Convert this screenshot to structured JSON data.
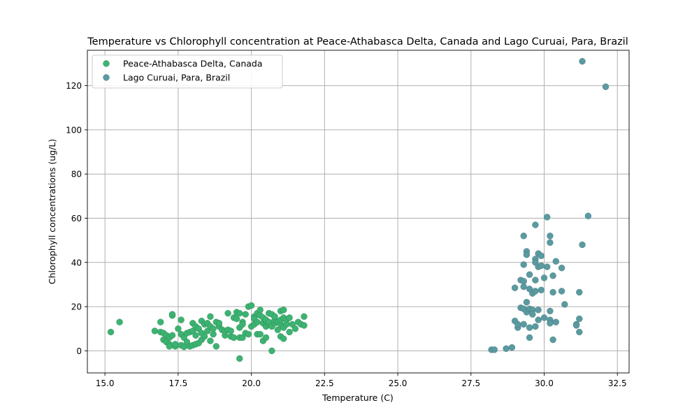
{
  "chart_data": {
    "type": "scatter",
    "title": "Temperature vs Chlorophyll concentration at Peace-Athabasca Delta, Canada and Lago Curuai, Para, Brazil",
    "xlabel": "Temperature (C)",
    "ylabel": "Chlorophyll concentrations (ug/L)",
    "xlim": [
      14.4,
      32.9
    ],
    "ylim": [
      -10,
      136
    ],
    "xticks": [
      "15.0",
      "17.5",
      "20.0",
      "22.5",
      "25.0",
      "27.5",
      "30.0",
      "32.5"
    ],
    "yticks": [
      "0",
      "20",
      "40",
      "60",
      "80",
      "100",
      "120"
    ],
    "grid": true,
    "legend_position": "top-left",
    "series": [
      {
        "name": "Peace-Athabasca Delta, Canada",
        "color": "#3cb371",
        "edge": "#2a7a4d",
        "points": [
          [
            15.2,
            8.5
          ],
          [
            15.5,
            13
          ],
          [
            16.7,
            9
          ],
          [
            16.9,
            13
          ],
          [
            16.9,
            8.5
          ],
          [
            17.0,
            5
          ],
          [
            17.0,
            8
          ],
          [
            17.1,
            7
          ],
          [
            17.1,
            4
          ],
          [
            17.2,
            6
          ],
          [
            17.2,
            3
          ],
          [
            17.2,
            2
          ],
          [
            17.3,
            7
          ],
          [
            17.3,
            16
          ],
          [
            17.3,
            16.5
          ],
          [
            17.4,
            2
          ],
          [
            17.4,
            3
          ],
          [
            17.5,
            10
          ],
          [
            17.6,
            7.5
          ],
          [
            17.6,
            2.5
          ],
          [
            17.6,
            14
          ],
          [
            17.7,
            6
          ],
          [
            17.7,
            1.8
          ],
          [
            17.8,
            8
          ],
          [
            17.8,
            4
          ],
          [
            17.9,
            2
          ],
          [
            17.9,
            8.5
          ],
          [
            18.0,
            12.5
          ],
          [
            18.0,
            9
          ],
          [
            18.0,
            2.5
          ],
          [
            18.1,
            3
          ],
          [
            18.1,
            7
          ],
          [
            18.1,
            11
          ],
          [
            18.2,
            10
          ],
          [
            18.2,
            3.5
          ],
          [
            18.3,
            13.5
          ],
          [
            18.3,
            8
          ],
          [
            18.3,
            5
          ],
          [
            18.4,
            12
          ],
          [
            18.4,
            6.5
          ],
          [
            18.5,
            9
          ],
          [
            18.5,
            12.5
          ],
          [
            18.6,
            11
          ],
          [
            18.6,
            4.5
          ],
          [
            18.6,
            15.5
          ],
          [
            18.7,
            7.5
          ],
          [
            18.7,
            10
          ],
          [
            18.8,
            2
          ],
          [
            18.8,
            13
          ],
          [
            18.9,
            11
          ],
          [
            18.9,
            12.5
          ],
          [
            19.0,
            9.5
          ],
          [
            19.1,
            7
          ],
          [
            19.1,
            9
          ],
          [
            19.2,
            17
          ],
          [
            19.2,
            9.5
          ],
          [
            19.3,
            6.5
          ],
          [
            19.3,
            9
          ],
          [
            19.4,
            6
          ],
          [
            19.4,
            15
          ],
          [
            19.5,
            14.5
          ],
          [
            19.5,
            17.5
          ],
          [
            19.6,
            10.5
          ],
          [
            19.6,
            17
          ],
          [
            19.6,
            6
          ],
          [
            19.6,
            -3.5
          ],
          [
            19.7,
            13
          ],
          [
            19.7,
            12
          ],
          [
            19.7,
            6
          ],
          [
            19.8,
            8
          ],
          [
            19.8,
            16.5
          ],
          [
            19.9,
            20
          ],
          [
            19.9,
            7.5
          ],
          [
            20.0,
            20.5
          ],
          [
            20.0,
            11
          ],
          [
            20.1,
            15.5
          ],
          [
            20.1,
            12
          ],
          [
            20.1,
            14.5
          ],
          [
            20.2,
            7.5
          ],
          [
            20.2,
            13
          ],
          [
            20.2,
            17
          ],
          [
            20.3,
            16
          ],
          [
            20.3,
            18.5
          ],
          [
            20.3,
            7.5
          ],
          [
            20.4,
            12.5
          ],
          [
            20.4,
            4.5
          ],
          [
            20.4,
            15
          ],
          [
            20.5,
            11
          ],
          [
            20.5,
            13.5
          ],
          [
            20.5,
            14
          ],
          [
            20.5,
            6
          ],
          [
            20.6,
            17
          ],
          [
            20.6,
            12
          ],
          [
            20.6,
            13
          ],
          [
            20.7,
            0
          ],
          [
            20.7,
            11
          ],
          [
            20.7,
            16.5
          ],
          [
            20.8,
            12.5
          ],
          [
            20.8,
            14
          ],
          [
            20.8,
            15.5
          ],
          [
            20.9,
            9.5
          ],
          [
            20.9,
            13
          ],
          [
            21.0,
            18
          ],
          [
            21.0,
            12
          ],
          [
            21.0,
            14
          ],
          [
            21.0,
            6.5
          ],
          [
            21.1,
            10.5
          ],
          [
            21.1,
            15
          ],
          [
            21.1,
            18.5
          ],
          [
            21.2,
            14
          ],
          [
            21.2,
            12
          ],
          [
            21.3,
            15
          ],
          [
            21.3,
            8.5
          ],
          [
            21.4,
            12
          ],
          [
            21.5,
            10
          ],
          [
            21.6,
            13
          ],
          [
            21.7,
            12
          ],
          [
            21.8,
            15.5
          ],
          [
            21.8,
            11.5
          ],
          [
            21.1,
            5.5
          ]
        ]
      },
      {
        "name": "Lago Curuai, Para, Brazil",
        "color": "#5a9aa0",
        "edge": "#3f6f74",
        "points": [
          [
            28.2,
            0.5
          ],
          [
            28.3,
            0.5
          ],
          [
            28.7,
            1
          ],
          [
            28.9,
            1.5
          ],
          [
            29.0,
            28.5
          ],
          [
            29.0,
            13.5
          ],
          [
            29.1,
            10.5
          ],
          [
            29.1,
            12
          ],
          [
            29.2,
            19.5
          ],
          [
            29.2,
            32
          ],
          [
            29.3,
            52
          ],
          [
            29.3,
            39
          ],
          [
            29.3,
            31.5
          ],
          [
            29.3,
            29
          ],
          [
            29.3,
            19
          ],
          [
            29.3,
            12
          ],
          [
            29.4,
            45
          ],
          [
            29.4,
            43.5
          ],
          [
            29.4,
            22
          ],
          [
            29.4,
            17.5
          ],
          [
            29.5,
            34.5
          ],
          [
            29.5,
            28
          ],
          [
            29.5,
            19
          ],
          [
            29.5,
            10.5
          ],
          [
            29.5,
            6
          ],
          [
            29.6,
            26
          ],
          [
            29.6,
            18.5
          ],
          [
            29.6,
            16.5
          ],
          [
            29.7,
            57
          ],
          [
            29.7,
            41.5
          ],
          [
            29.7,
            40
          ],
          [
            29.7,
            32
          ],
          [
            29.7,
            27
          ],
          [
            29.7,
            11
          ],
          [
            29.8,
            44
          ],
          [
            29.8,
            38
          ],
          [
            29.8,
            18.5
          ],
          [
            29.8,
            14
          ],
          [
            29.9,
            43
          ],
          [
            29.9,
            27.5
          ],
          [
            29.9,
            38.5
          ],
          [
            30.0,
            33
          ],
          [
            30.0,
            15
          ],
          [
            30.1,
            60.5
          ],
          [
            30.1,
            38
          ],
          [
            30.2,
            52
          ],
          [
            30.2,
            49
          ],
          [
            30.2,
            18
          ],
          [
            30.2,
            14
          ],
          [
            30.2,
            12.5
          ],
          [
            30.3,
            34
          ],
          [
            30.3,
            26.5
          ],
          [
            30.3,
            5
          ],
          [
            30.4,
            40.5
          ],
          [
            30.4,
            13
          ],
          [
            30.6,
            37.5
          ],
          [
            30.6,
            27
          ],
          [
            30.7,
            21
          ],
          [
            31.1,
            12
          ],
          [
            31.1,
            11.5
          ],
          [
            31.2,
            14.5
          ],
          [
            31.2,
            8.5
          ],
          [
            31.2,
            26.5
          ],
          [
            31.3,
            48
          ],
          [
            31.3,
            131
          ],
          [
            31.5,
            61
          ],
          [
            32.1,
            119.5
          ]
        ]
      }
    ]
  }
}
